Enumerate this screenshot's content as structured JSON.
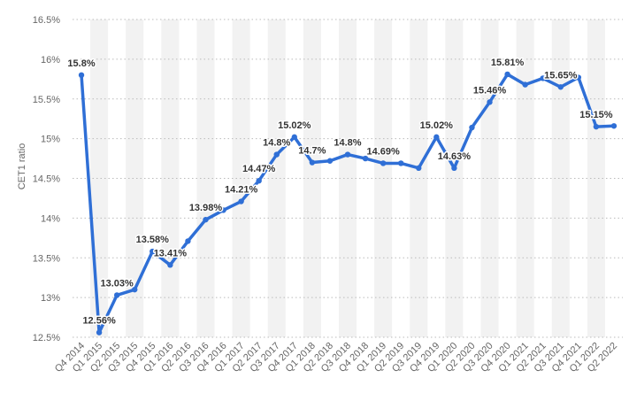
{
  "chart_data": {
    "type": "line",
    "ylabel": "CET1 ratio",
    "ylim": [
      12.5,
      16.5
    ],
    "yticks": [
      "12.5%",
      "13%",
      "13.5%",
      "14%",
      "14.5%",
      "15%",
      "15.5%",
      "16%",
      "16.5%"
    ],
    "grid": "horizontal dotted",
    "colors": {
      "line": "#2f6fd6",
      "band": "#f2f2f2",
      "grid": "#bbbbbb"
    },
    "categories": [
      "Q4 2014",
      "Q1 2015",
      "Q2 2015",
      "Q3 2015",
      "Q4 2015",
      "Q1 2016",
      "Q2 2016",
      "Q3 2016",
      "Q4 2016",
      "Q1 2017",
      "Q2 2017",
      "Q3 2017",
      "Q4 2017",
      "Q1 2018",
      "Q2 2018",
      "Q3 2018",
      "Q4 2018",
      "Q1 2019",
      "Q2 2019",
      "Q3 2019",
      "Q4 2019",
      "Q1 2020",
      "Q2 2020",
      "Q3 2020",
      "Q4 2020",
      "Q1 2021",
      "Q2 2021",
      "Q3 2021",
      "Q4 2021",
      "Q1 2022",
      "Q2 2022"
    ],
    "series": [
      {
        "values": [
          15.8,
          12.56,
          13.03,
          13.1,
          13.58,
          13.41,
          13.71,
          13.98,
          14.1,
          14.21,
          14.47,
          14.8,
          15.02,
          14.7,
          14.72,
          14.8,
          14.75,
          14.69,
          14.69,
          14.63,
          15.02,
          14.63,
          15.14,
          15.46,
          15.81,
          15.68,
          15.76,
          15.65,
          15.77,
          15.15,
          15.16
        ]
      }
    ],
    "data_labels": [
      {
        "index": 0,
        "text": "15.8%"
      },
      {
        "index": 1,
        "text": "12.56%"
      },
      {
        "index": 2,
        "text": "13.03%"
      },
      {
        "index": 4,
        "text": "13.58%"
      },
      {
        "index": 5,
        "text": "13.41%"
      },
      {
        "index": 7,
        "text": "13.98%"
      },
      {
        "index": 9,
        "text": "14.21%"
      },
      {
        "index": 10,
        "text": "14.47%"
      },
      {
        "index": 11,
        "text": "14.8%"
      },
      {
        "index": 12,
        "text": "15.02%"
      },
      {
        "index": 13,
        "text": "14.7%"
      },
      {
        "index": 15,
        "text": "14.8%"
      },
      {
        "index": 17,
        "text": "14.69%"
      },
      {
        "index": 20,
        "text": "15.02%"
      },
      {
        "index": 21,
        "text": "14.63%"
      },
      {
        "index": 23,
        "text": "15.46%"
      },
      {
        "index": 24,
        "text": "15.81%"
      },
      {
        "index": 27,
        "text": "15.65%"
      },
      {
        "index": 29,
        "text": "15.15%"
      }
    ]
  }
}
